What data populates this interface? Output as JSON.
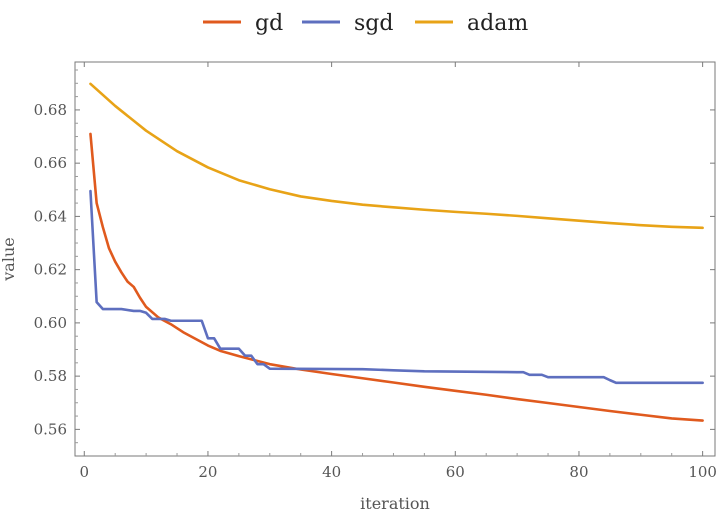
{
  "chart_data": {
    "type": "line",
    "title": "",
    "xlabel": "iteration",
    "ylabel": "value",
    "xlim": [
      -1.5,
      102
    ],
    "ylim": [
      0.55,
      0.698
    ],
    "x_ticks": [
      0,
      20,
      40,
      60,
      80,
      100
    ],
    "y_ticks": [
      0.56,
      0.58,
      0.6,
      0.62,
      0.64,
      0.66,
      0.68
    ],
    "grid": false,
    "legend_position": "top",
    "series": [
      {
        "name": "gd",
        "color": "#E05A1E",
        "points": [
          [
            1,
            0.671
          ],
          [
            2,
            0.645
          ],
          [
            3,
            0.636
          ],
          [
            4,
            0.628
          ],
          [
            5,
            0.623
          ],
          [
            6,
            0.619
          ],
          [
            7,
            0.6155
          ],
          [
            8,
            0.6135
          ],
          [
            9,
            0.6095
          ],
          [
            10,
            0.606
          ],
          [
            12,
            0.602
          ],
          [
            14,
            0.5995
          ],
          [
            16,
            0.5965
          ],
          [
            18,
            0.594
          ],
          [
            20,
            0.5915
          ],
          [
            22,
            0.5895
          ],
          [
            25,
            0.5875
          ],
          [
            30,
            0.5845
          ],
          [
            35,
            0.5825
          ],
          [
            40,
            0.5808
          ],
          [
            45,
            0.5792
          ],
          [
            50,
            0.5776
          ],
          [
            55,
            0.576
          ],
          [
            60,
            0.5745
          ],
          [
            65,
            0.573
          ],
          [
            70,
            0.5714
          ],
          [
            75,
            0.5699
          ],
          [
            80,
            0.5684
          ],
          [
            85,
            0.5669
          ],
          [
            90,
            0.5655
          ],
          [
            95,
            0.5641
          ],
          [
            100,
            0.5633
          ]
        ]
      },
      {
        "name": "sgd",
        "color": "#5E6FBF",
        "points": [
          [
            1,
            0.6495
          ],
          [
            2,
            0.6078
          ],
          [
            3,
            0.6052
          ],
          [
            6,
            0.6052
          ],
          [
            8,
            0.6045
          ],
          [
            9,
            0.6045
          ],
          [
            10,
            0.6038
          ],
          [
            11,
            0.6015
          ],
          [
            13,
            0.6015
          ],
          [
            14,
            0.6008
          ],
          [
            17,
            0.6008
          ],
          [
            19,
            0.6008
          ],
          [
            20,
            0.5942
          ],
          [
            21,
            0.5942
          ],
          [
            22,
            0.5903
          ],
          [
            25,
            0.5903
          ],
          [
            26,
            0.5877
          ],
          [
            27,
            0.5877
          ],
          [
            28,
            0.5845
          ],
          [
            29,
            0.5845
          ],
          [
            30,
            0.5828
          ],
          [
            45,
            0.5826
          ],
          [
            50,
            0.5822
          ],
          [
            55,
            0.5818
          ],
          [
            70,
            0.5815
          ],
          [
            71,
            0.5815
          ],
          [
            72,
            0.5805
          ],
          [
            74,
            0.5805
          ],
          [
            75,
            0.5796
          ],
          [
            84,
            0.5796
          ],
          [
            85,
            0.5785
          ],
          [
            86,
            0.5775
          ],
          [
            100,
            0.5775
          ]
        ]
      },
      {
        "name": "adam",
        "color": "#E8A317",
        "points": [
          [
            1,
            0.6898
          ],
          [
            5,
            0.6815
          ],
          [
            10,
            0.6722
          ],
          [
            15,
            0.6645
          ],
          [
            20,
            0.6584
          ],
          [
            25,
            0.6536
          ],
          [
            30,
            0.6502
          ],
          [
            35,
            0.6475
          ],
          [
            40,
            0.6458
          ],
          [
            45,
            0.6444
          ],
          [
            50,
            0.6434
          ],
          [
            55,
            0.6425
          ],
          [
            60,
            0.6417
          ],
          [
            65,
            0.641
          ],
          [
            70,
            0.6402
          ],
          [
            75,
            0.6393
          ],
          [
            80,
            0.6384
          ],
          [
            85,
            0.6375
          ],
          [
            90,
            0.6367
          ],
          [
            95,
            0.6361
          ],
          [
            100,
            0.6357
          ]
        ]
      }
    ]
  }
}
